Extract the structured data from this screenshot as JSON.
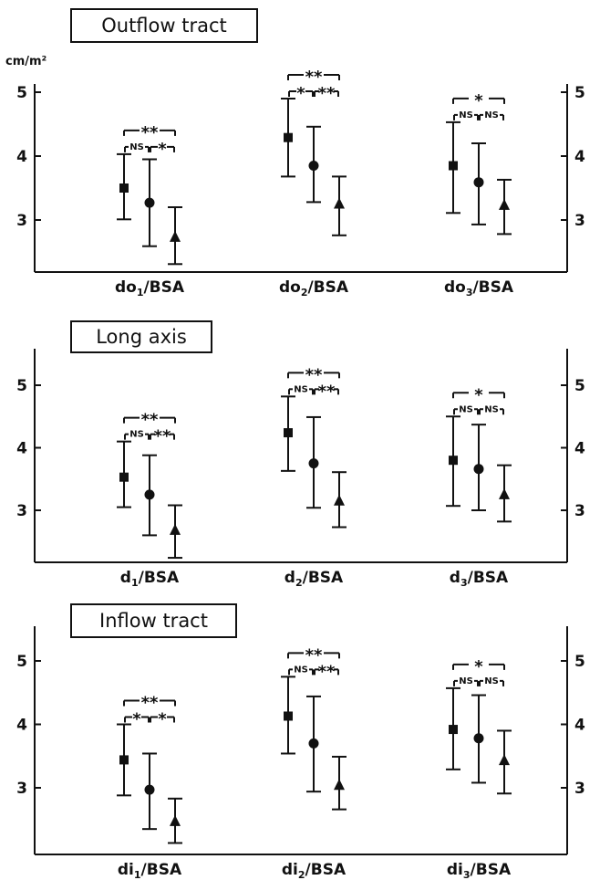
{
  "unit_label": "cm/m²",
  "chart_data": [
    {
      "type": "scatter",
      "title": "Outflow tract",
      "ylim": [
        2.2,
        5.1
      ],
      "yticks": [
        3,
        4,
        5
      ],
      "groups": [
        {
          "label_main": "do",
          "label_sub": "1",
          "label_tail": "/BSA",
          "points": [
            {
              "marker": "square",
              "mean": 3.5,
              "low": 3.01,
              "high": 4.03
            },
            {
              "marker": "circle",
              "mean": 3.27,
              "low": 2.59,
              "high": 3.95
            },
            {
              "marker": "triangle",
              "mean": 2.73,
              "low": 2.31,
              "high": 3.2
            }
          ],
          "sig": {
            "outer": "**",
            "left": "NS",
            "right": "*"
          }
        },
        {
          "label_main": "do",
          "label_sub": "2",
          "label_tail": "/BSA",
          "points": [
            {
              "marker": "square",
              "mean": 4.29,
              "low": 3.68,
              "high": 4.9
            },
            {
              "marker": "circle",
              "mean": 3.85,
              "low": 3.28,
              "high": 4.46
            },
            {
              "marker": "triangle",
              "mean": 3.25,
              "low": 2.76,
              "high": 3.68
            }
          ],
          "sig": {
            "outer": "**",
            "left": "*",
            "right": "**"
          }
        },
        {
          "label_main": "do",
          "label_sub": "3",
          "label_tail": "/BSA",
          "points": [
            {
              "marker": "square",
              "mean": 3.85,
              "low": 3.11,
              "high": 4.53
            },
            {
              "marker": "circle",
              "mean": 3.59,
              "low": 2.93,
              "high": 4.2
            },
            {
              "marker": "triangle",
              "mean": 3.23,
              "low": 2.78,
              "high": 3.63
            }
          ],
          "sig": {
            "outer": "*",
            "left": "NS",
            "right": "NS"
          }
        }
      ]
    },
    {
      "type": "scatter",
      "title": "Long axis",
      "ylim": [
        2.2,
        5.45
      ],
      "yticks": [
        3,
        4,
        5
      ],
      "groups": [
        {
          "label_main": "d",
          "label_sub": "1",
          "label_tail": "/BSA",
          "points": [
            {
              "marker": "square",
              "mean": 3.53,
              "low": 3.05,
              "high": 4.1
            },
            {
              "marker": "circle",
              "mean": 3.25,
              "low": 2.6,
              "high": 3.88
            },
            {
              "marker": "triangle",
              "mean": 2.68,
              "low": 2.24,
              "high": 3.08
            }
          ],
          "sig": {
            "outer": "**",
            "left": "NS",
            "right": "**"
          }
        },
        {
          "label_main": "d",
          "label_sub": "2",
          "label_tail": "/BSA",
          "points": [
            {
              "marker": "square",
              "mean": 4.24,
              "low": 3.63,
              "high": 4.82
            },
            {
              "marker": "circle",
              "mean": 3.75,
              "low": 3.04,
              "high": 4.49
            },
            {
              "marker": "triangle",
              "mean": 3.15,
              "low": 2.73,
              "high": 3.61
            }
          ],
          "sig": {
            "outer": "**",
            "left": "NS",
            "right": "**"
          }
        },
        {
          "label_main": "d",
          "label_sub": "3",
          "label_tail": "/BSA",
          "points": [
            {
              "marker": "square",
              "mean": 3.8,
              "low": 3.07,
              "high": 4.5
            },
            {
              "marker": "circle",
              "mean": 3.66,
              "low": 3.0,
              "high": 4.37
            },
            {
              "marker": "triangle",
              "mean": 3.25,
              "low": 2.82,
              "high": 3.72
            }
          ],
          "sig": {
            "outer": "*",
            "left": "NS",
            "right": "NS"
          }
        }
      ]
    },
    {
      "type": "scatter",
      "title": "Inflow tract",
      "ylim": [
        2.0,
        5.4
      ],
      "yticks": [
        3,
        4,
        5
      ],
      "groups": [
        {
          "label_main": "di",
          "label_sub": "1",
          "label_tail": "/BSA",
          "points": [
            {
              "marker": "square",
              "mean": 3.44,
              "low": 2.88,
              "high": 4.0
            },
            {
              "marker": "circle",
              "mean": 2.97,
              "low": 2.35,
              "high": 3.54
            },
            {
              "marker": "triangle",
              "mean": 2.47,
              "low": 2.13,
              "high": 2.83
            }
          ],
          "sig": {
            "outer": "**",
            "left": "*",
            "right": "*"
          }
        },
        {
          "label_main": "di",
          "label_sub": "2",
          "label_tail": "/BSA",
          "points": [
            {
              "marker": "square",
              "mean": 4.13,
              "low": 3.54,
              "high": 4.75
            },
            {
              "marker": "circle",
              "mean": 3.7,
              "low": 2.94,
              "high": 4.44
            },
            {
              "marker": "triangle",
              "mean": 3.04,
              "low": 2.66,
              "high": 3.49
            }
          ],
          "sig": {
            "outer": "**",
            "left": "NS",
            "right": "**"
          }
        },
        {
          "label_main": "di",
          "label_sub": "3",
          "label_tail": "/BSA",
          "points": [
            {
              "marker": "square",
              "mean": 3.92,
              "low": 3.29,
              "high": 4.57
            },
            {
              "marker": "circle",
              "mean": 3.78,
              "low": 3.08,
              "high": 4.46
            },
            {
              "marker": "triangle",
              "mean": 3.43,
              "low": 2.91,
              "high": 3.9
            }
          ],
          "sig": {
            "outer": "*",
            "left": "NS",
            "right": "NS"
          }
        }
      ]
    }
  ]
}
